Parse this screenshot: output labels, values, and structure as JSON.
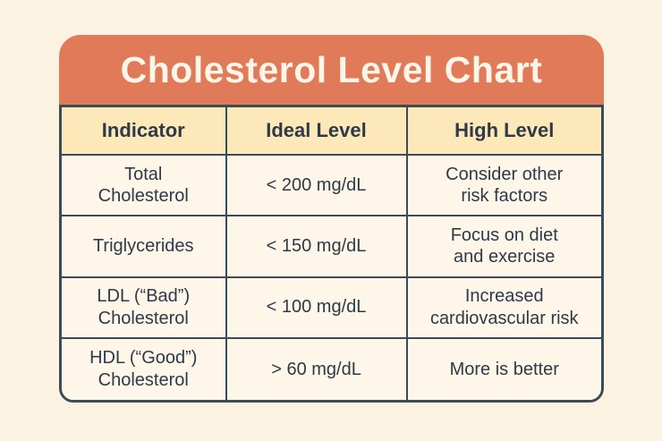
{
  "page": {
    "title": "Cholesterol Level Chart"
  },
  "colors": {
    "page_background": "#FBF2E1",
    "header_background": "#E07A58",
    "header_text": "#FCF5E8",
    "column_header_background": "#FCE8B8",
    "cell_background": "#FDF6E9",
    "border": "#3C4B58",
    "text": "#2E3A48"
  },
  "table": {
    "headers": [
      "Indicator",
      "Ideal Level",
      "High Level"
    ],
    "rows": [
      {
        "indicator": "Total\nCholesterol",
        "ideal": "< 200 mg/dL",
        "high": "Consider other\nrisk factors"
      },
      {
        "indicator": "Triglycerides",
        "ideal": "< 150 mg/dL",
        "high": "Focus on diet\nand exercise"
      },
      {
        "indicator": "LDL (“Bad”)\nCholesterol",
        "ideal": "< 100 mg/dL",
        "high": "Increased\ncardiovascular risk"
      },
      {
        "indicator": "HDL (“Good”)\nCholesterol",
        "ideal": "> 60 mg/dL",
        "high": "More is better"
      }
    ]
  },
  "chart_data": {
    "type": "table",
    "title": "Cholesterol Level Chart",
    "columns": [
      "Indicator",
      "Ideal Level",
      "High Level"
    ],
    "rows": [
      [
        "Total Cholesterol",
        "< 200 mg/dL",
        "Consider other risk factors"
      ],
      [
        "Triglycerides",
        "< 150 mg/dL",
        "Focus on diet and exercise"
      ],
      [
        "LDL (“Bad”) Cholesterol",
        "< 100 mg/dL",
        "Increased cardiovascular risk"
      ],
      [
        "HDL (“Good”) Cholesterol",
        "> 60 mg/dL",
        "More is better"
      ]
    ]
  }
}
